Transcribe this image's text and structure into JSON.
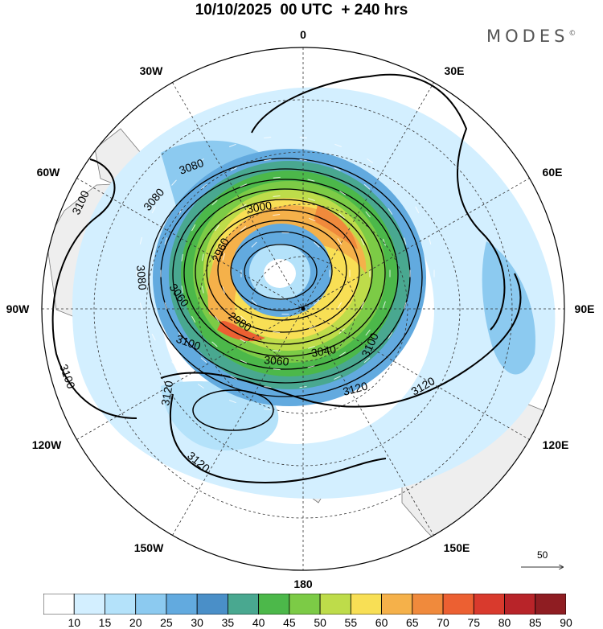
{
  "title": "10/10/2025  00 UTC  + 240 hrs",
  "brand": {
    "text": "MODES",
    "mark": "©"
  },
  "longitude_labels": [
    "0",
    "30E",
    "60E",
    "90E",
    "120E",
    "150E",
    "180",
    "150W",
    "120W",
    "90W",
    "60W",
    "30W"
  ],
  "contour_labels": [
    "3080",
    "3100",
    "3080",
    "3000",
    "2960",
    "3080",
    "3060",
    "2980",
    "3100",
    "3060",
    "3040",
    "3100",
    "3120",
    "3120",
    "3100",
    "3120",
    "3120"
  ],
  "colorbar": {
    "ticks": [
      "10",
      "15",
      "20",
      "25",
      "30",
      "35",
      "40",
      "45",
      "50",
      "55",
      "60",
      "65",
      "70",
      "75",
      "80",
      "85",
      "90"
    ],
    "colors": [
      "#ffffff",
      "#d3efff",
      "#b4e2fa",
      "#8ccaf0",
      "#62aadf",
      "#4a8fc8",
      "#49a890",
      "#4cb84a",
      "#7ccb46",
      "#bedc4a",
      "#f8df55",
      "#f5b14a",
      "#f08a3c",
      "#ec6032",
      "#d93a2d",
      "#b82429",
      "#8f1d22"
    ]
  },
  "wind_scale": {
    "value": "50"
  },
  "colors": {
    "land": "#eeeeee",
    "coast": "#777777",
    "contour": "#000000",
    "grid": "#333333"
  }
}
